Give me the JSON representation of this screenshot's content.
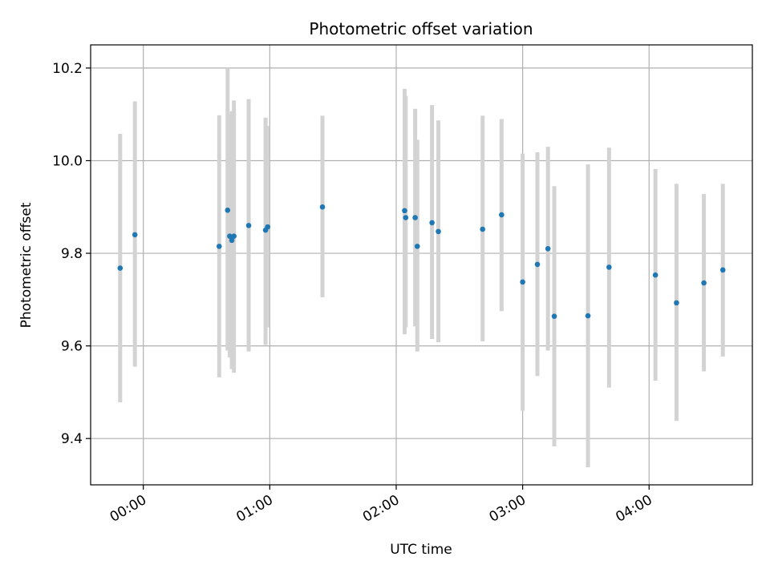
{
  "chart_data": {
    "type": "scatter",
    "title": "Photometric offset variation",
    "xlabel": "UTC time",
    "ylabel": "Photometric offset",
    "xlim": [
      "2025-01-01T23:35:00",
      "2025-01-02T04:49:00"
    ],
    "ylim": [
      9.3,
      10.25
    ],
    "x_ticks": [
      "2025-01-02T00:00:00",
      "2025-01-02T01:00:00",
      "2025-01-02T02:00:00",
      "2025-01-02T03:00:00",
      "2025-01-02T04:00:00"
    ],
    "x_tick_labels": [
      "00:00",
      "01:00",
      "02:00",
      "03:00",
      "04:00"
    ],
    "y_ticks": [
      9.4,
      9.6,
      9.8,
      10.0,
      10.2
    ],
    "y_tick_labels": [
      "9.4",
      "9.6",
      "9.8",
      "10.0",
      "10.2"
    ],
    "grid": true,
    "colors": {
      "point": "#1f77b4",
      "errorbar": "#d3d3d3",
      "grid": "#b0b0b0"
    },
    "points": [
      {
        "x": "2025-01-01T23:49:00",
        "y": 9.768,
        "yerr_low": 9.478,
        "yerr_high": 10.058
      },
      {
        "x": "2025-01-01T23:56:00",
        "y": 9.84,
        "yerr_low": 9.555,
        "yerr_high": 10.128
      },
      {
        "x": "2025-01-02T00:36:00",
        "y": 9.815,
        "yerr_low": 9.532,
        "yerr_high": 10.098
      },
      {
        "x": "2025-01-02T00:40:00",
        "y": 9.893,
        "yerr_low": 9.59,
        "yerr_high": 10.2
      },
      {
        "x": "2025-01-02T00:41:00",
        "y": 9.837,
        "yerr_low": 9.575,
        "yerr_high": 10.1
      },
      {
        "x": "2025-01-02T00:42:00",
        "y": 9.828,
        "yerr_low": 9.55,
        "yerr_high": 10.107
      },
      {
        "x": "2025-01-02T00:43:00",
        "y": 9.837,
        "yerr_low": 9.542,
        "yerr_high": 10.13
      },
      {
        "x": "2025-01-02T00:50:00",
        "y": 9.86,
        "yerr_low": 9.588,
        "yerr_high": 10.133
      },
      {
        "x": "2025-01-02T00:58:00",
        "y": 9.85,
        "yerr_low": 9.602,
        "yerr_high": 10.093
      },
      {
        "x": "2025-01-02T00:59:00",
        "y": 9.857,
        "yerr_low": 9.64,
        "yerr_high": 10.075
      },
      {
        "x": "2025-01-02T01:25:00",
        "y": 9.9,
        "yerr_low": 9.705,
        "yerr_high": 10.097
      },
      {
        "x": "2025-01-02T02:04:00",
        "y": 9.892,
        "yerr_low": 9.625,
        "yerr_high": 10.155
      },
      {
        "x": "2025-01-02T02:04:30",
        "y": 9.877,
        "yerr_low": 9.64,
        "yerr_high": 10.14
      },
      {
        "x": "2025-01-02T02:09:00",
        "y": 9.877,
        "yerr_low": 9.642,
        "yerr_high": 10.112
      },
      {
        "x": "2025-01-02T02:10:00",
        "y": 9.815,
        "yerr_low": 9.588,
        "yerr_high": 10.045
      },
      {
        "x": "2025-01-02T02:17:00",
        "y": 9.866,
        "yerr_low": 9.615,
        "yerr_high": 10.12
      },
      {
        "x": "2025-01-02T02:20:00",
        "y": 9.847,
        "yerr_low": 9.608,
        "yerr_high": 10.087
      },
      {
        "x": "2025-01-02T02:41:00",
        "y": 9.852,
        "yerr_low": 9.61,
        "yerr_high": 10.097
      },
      {
        "x": "2025-01-02T02:50:00",
        "y": 9.883,
        "yerr_low": 9.675,
        "yerr_high": 10.09
      },
      {
        "x": "2025-01-02T03:00:00",
        "y": 9.738,
        "yerr_low": 9.46,
        "yerr_high": 10.015
      },
      {
        "x": "2025-01-02T03:07:00",
        "y": 9.776,
        "yerr_low": 9.535,
        "yerr_high": 10.018
      },
      {
        "x": "2025-01-02T03:12:00",
        "y": 9.81,
        "yerr_low": 9.59,
        "yerr_high": 10.03
      },
      {
        "x": "2025-01-02T03:15:00",
        "y": 9.664,
        "yerr_low": 9.383,
        "yerr_high": 9.945
      },
      {
        "x": "2025-01-02T03:31:00",
        "y": 9.665,
        "yerr_low": 9.338,
        "yerr_high": 9.992
      },
      {
        "x": "2025-01-02T03:41:00",
        "y": 9.77,
        "yerr_low": 9.51,
        "yerr_high": 10.028
      },
      {
        "x": "2025-01-02T04:03:00",
        "y": 9.753,
        "yerr_low": 9.525,
        "yerr_high": 9.982
      },
      {
        "x": "2025-01-02T04:13:00",
        "y": 9.693,
        "yerr_low": 9.438,
        "yerr_high": 9.95
      },
      {
        "x": "2025-01-02T04:26:00",
        "y": 9.736,
        "yerr_low": 9.545,
        "yerr_high": 9.928
      },
      {
        "x": "2025-01-02T04:35:00",
        "y": 9.764,
        "yerr_low": 9.577,
        "yerr_high": 9.95
      }
    ]
  }
}
